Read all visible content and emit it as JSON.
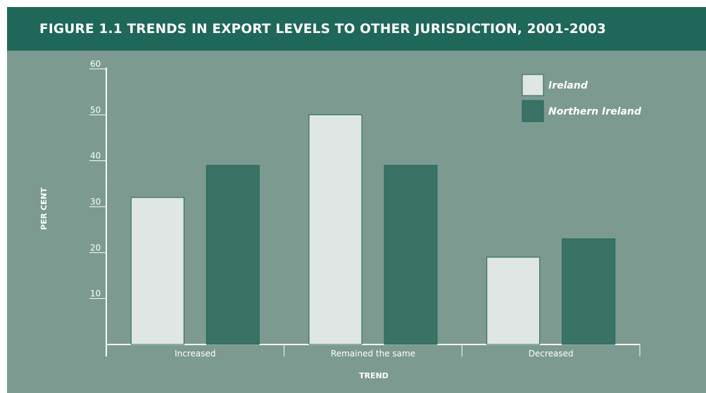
{
  "title": "FIGURE 1.1 TRENDS IN EXPORT LEVELS TO OTHER JURISDICTION, 2001-2003",
  "colors": {
    "header": "#1e6759",
    "background": "#7c9a8f",
    "ireland": "#e0e6e3",
    "northern_ireland": "#3b7266",
    "axis": "#ffffff"
  },
  "chart_data": {
    "type": "bar",
    "title": "FIGURE 1.1 TRENDS IN EXPORT LEVELS TO OTHER JURISDICTION, 2001-2003",
    "xlabel": "TREND",
    "ylabel": "PER CENT",
    "categories": [
      "Increased",
      "Remained the same",
      "Decreased"
    ],
    "series": [
      {
        "name": "Ireland",
        "values": [
          32,
          50,
          19
        ]
      },
      {
        "name": "Northern Ireland",
        "values": [
          39,
          39,
          23
        ]
      }
    ],
    "ylim": [
      0,
      60
    ],
    "yticks": [
      10,
      20,
      30,
      40,
      50,
      60
    ],
    "grid": false,
    "legend_position": "top-right"
  }
}
